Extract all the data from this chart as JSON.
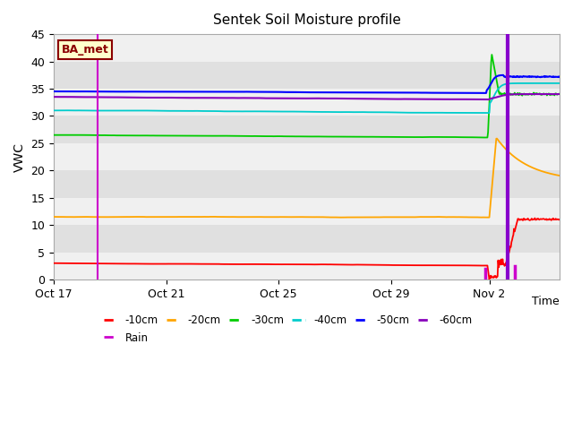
{
  "title": "Sentek Soil Moisture profile",
  "xlabel": "Time",
  "ylabel": "VWC",
  "ylim": [
    0,
    45
  ],
  "background_color": "#ffffff",
  "plot_bg_color": "#e8e8e8",
  "stripe_color": "#f5f5f5",
  "legend_label": "BA_met",
  "legend_box_facecolor": "#ffffcc",
  "legend_box_edgecolor": "#8b0000",
  "x_tick_labels": [
    "Oct 17",
    "Oct 21",
    "Oct 25",
    "Oct 29",
    "Nov 2"
  ],
  "x_tick_positions": [
    0,
    4,
    8,
    12,
    15.5
  ],
  "total_days": 18.0,
  "rain_day1": 1.55,
  "rain_day2": 15.5,
  "rain_day3": 16.4,
  "series": {
    "-10cm": {
      "color": "#ff0000",
      "base": 3.0,
      "post_base": 11.0
    },
    "-20cm": {
      "color": "#ffa500",
      "base": 11.5,
      "post_base": 18.0
    },
    "-30cm": {
      "color": "#00cc00",
      "base": 26.5,
      "spike": 41.5,
      "post_base": 34.0
    },
    "-40cm": {
      "color": "#00cccc",
      "base": 31.0,
      "post_base": 36.0
    },
    "-50cm": {
      "color": "#0000ff",
      "base": 34.5,
      "post_base": 37.5
    },
    "-60cm": {
      "color": "#8800bb",
      "base": 33.5,
      "post_base": 34.0
    }
  },
  "rain_color": "#cc00cc",
  "noise_seed": 42
}
